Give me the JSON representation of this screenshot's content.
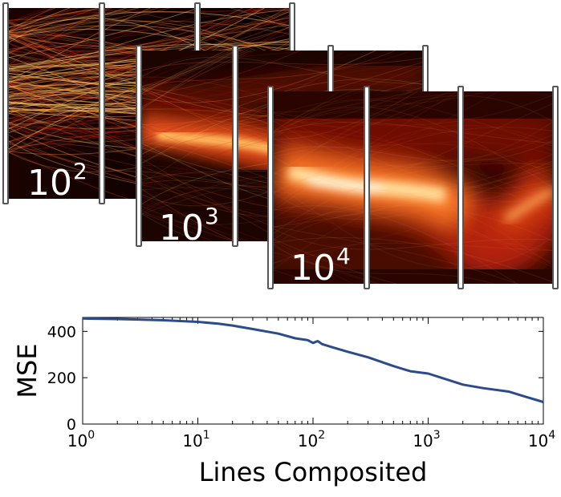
{
  "panels": [
    {
      "base": "10",
      "exponent": "2"
    },
    {
      "base": "10",
      "exponent": "3"
    },
    {
      "base": "10",
      "exponent": "4"
    }
  ],
  "colors": {
    "line": "#2b4b8c",
    "heat_low": "#000000",
    "heat_mid": "#b5180a",
    "heat_high": "#ffd870",
    "heat_peak": "#fffbe8"
  },
  "chart_data": {
    "type": "line",
    "title": "",
    "xlabel": "Lines Composited",
    "ylabel": "MSE",
    "x_scale": "log",
    "xlim": [
      1,
      10000
    ],
    "ylim": [
      0,
      460
    ],
    "xticks": [
      {
        "base": "10",
        "exp": "0",
        "value": 1
      },
      {
        "base": "10",
        "exp": "1",
        "value": 10
      },
      {
        "base": "10",
        "exp": "2",
        "value": 100
      },
      {
        "base": "10",
        "exp": "3",
        "value": 1000
      },
      {
        "base": "10",
        "exp": "4",
        "value": 10000
      }
    ],
    "yticks": [
      {
        "label": "0",
        "value": 0
      },
      {
        "label": "200",
        "value": 200
      },
      {
        "label": "400",
        "value": 400
      }
    ],
    "grid": false,
    "series": [
      {
        "x": [
          1,
          2,
          3,
          5,
          8,
          10,
          15,
          20,
          30,
          50,
          70,
          90,
          100,
          110,
          120,
          150,
          200,
          300,
          500,
          700,
          1000,
          1500,
          2000,
          3000,
          5000,
          7000,
          10000
        ],
        "y": [
          455,
          453,
          451,
          448,
          443,
          441,
          433,
          425,
          410,
          390,
          370,
          362,
          350,
          358,
          345,
          330,
          312,
          288,
          250,
          228,
          218,
          190,
          170,
          155,
          140,
          118,
          95
        ]
      }
    ]
  }
}
